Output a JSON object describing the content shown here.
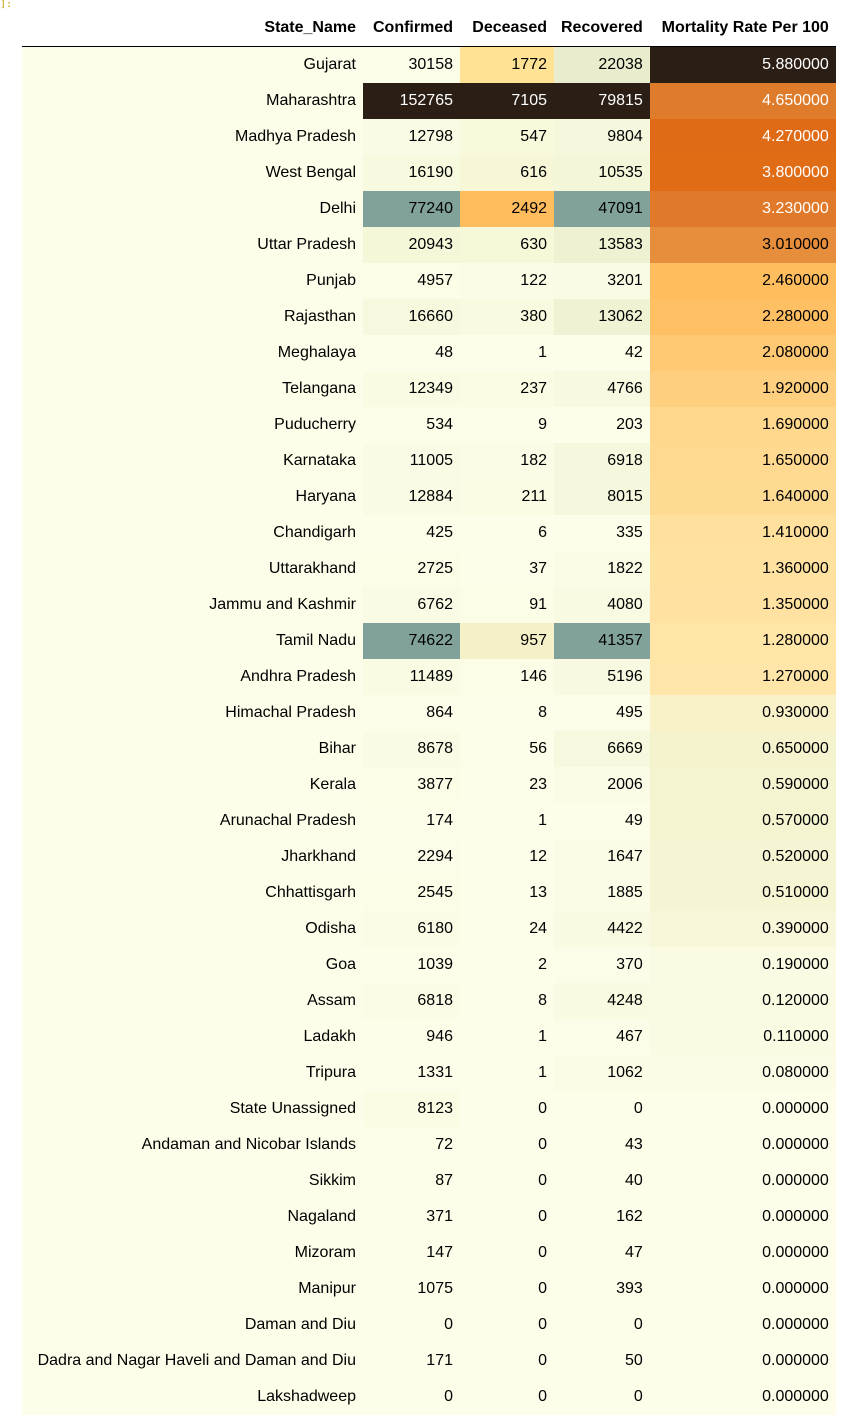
{
  "prompt_marker": "]:",
  "table": {
    "columns": [
      "State_Name",
      "Confirmed",
      "Deceased",
      "Recovered",
      "Mortality Rate Per 100"
    ],
    "rows": [
      [
        "Gujarat",
        "30158",
        "1772",
        "22038",
        "5.880000"
      ],
      [
        "Maharashtra",
        "152765",
        "7105",
        "79815",
        "4.650000"
      ],
      [
        "Madhya Pradesh",
        "12798",
        "547",
        "9804",
        "4.270000"
      ],
      [
        "West Bengal",
        "16190",
        "616",
        "10535",
        "3.800000"
      ],
      [
        "Delhi",
        "77240",
        "2492",
        "47091",
        "3.230000"
      ],
      [
        "Uttar Pradesh",
        "20943",
        "630",
        "13583",
        "3.010000"
      ],
      [
        "Punjab",
        "4957",
        "122",
        "3201",
        "2.460000"
      ],
      [
        "Rajasthan",
        "16660",
        "380",
        "13062",
        "2.280000"
      ],
      [
        "Meghalaya",
        "48",
        "1",
        "42",
        "2.080000"
      ],
      [
        "Telangana",
        "12349",
        "237",
        "4766",
        "1.920000"
      ],
      [
        "Puducherry",
        "534",
        "9",
        "203",
        "1.690000"
      ],
      [
        "Karnataka",
        "11005",
        "182",
        "6918",
        "1.650000"
      ],
      [
        "Haryana",
        "12884",
        "211",
        "8015",
        "1.640000"
      ],
      [
        "Chandigarh",
        "425",
        "6",
        "335",
        "1.410000"
      ],
      [
        "Uttarakhand",
        "2725",
        "37",
        "1822",
        "1.360000"
      ],
      [
        "Jammu and Kashmir",
        "6762",
        "91",
        "4080",
        "1.350000"
      ],
      [
        "Tamil Nadu",
        "74622",
        "957",
        "41357",
        "1.280000"
      ],
      [
        "Andhra Pradesh",
        "11489",
        "146",
        "5196",
        "1.270000"
      ],
      [
        "Himachal Pradesh",
        "864",
        "8",
        "495",
        "0.930000"
      ],
      [
        "Bihar",
        "8678",
        "56",
        "6669",
        "0.650000"
      ],
      [
        "Kerala",
        "3877",
        "23",
        "2006",
        "0.590000"
      ],
      [
        "Arunachal Pradesh",
        "174",
        "1",
        "49",
        "0.570000"
      ],
      [
        "Jharkhand",
        "2294",
        "12",
        "1647",
        "0.520000"
      ],
      [
        "Chhattisgarh",
        "2545",
        "13",
        "1885",
        "0.510000"
      ],
      [
        "Odisha",
        "6180",
        "24",
        "4422",
        "0.390000"
      ],
      [
        "Goa",
        "1039",
        "2",
        "370",
        "0.190000"
      ],
      [
        "Assam",
        "6818",
        "8",
        "4248",
        "0.120000"
      ],
      [
        "Ladakh",
        "946",
        "1",
        "467",
        "0.110000"
      ],
      [
        "Tripura",
        "1331",
        "1",
        "1062",
        "0.080000"
      ],
      [
        "State Unassigned",
        "8123",
        "0",
        "0",
        "0.000000"
      ],
      [
        "Andaman and Nicobar Islands",
        "72",
        "0",
        "43",
        "0.000000"
      ],
      [
        "Sikkim",
        "87",
        "0",
        "40",
        "0.000000"
      ],
      [
        "Nagaland",
        "371",
        "0",
        "162",
        "0.000000"
      ],
      [
        "Mizoram",
        "147",
        "0",
        "47",
        "0.000000"
      ],
      [
        "Manipur",
        "1075",
        "0",
        "393",
        "0.000000"
      ],
      [
        "Daman and Diu",
        "0",
        "0",
        "0",
        "0.000000"
      ],
      [
        "Dadra and Nagar Haveli and Daman and Diu",
        "171",
        "0",
        "50",
        "0.000000"
      ],
      [
        "Lakshadweep",
        "0",
        "0",
        "0",
        "0.000000"
      ]
    ],
    "colors": {
      "idx": "#fdfde9",
      "cell_light": "#fdfde9",
      "light_text": "#ffffff",
      "dark_text": "#000000",
      "confirmed": [
        "#fcfde9",
        "#2b1e14",
        "#f9fbe4",
        "#f8fae0",
        "#80a29a",
        "#f5f7d9",
        "#fcfde6",
        "#f7f9df",
        "#fdfdea",
        "#f9fbe3",
        "#fdfdea",
        "#f9fbe4",
        "#f9fbe4",
        "#fdfdea",
        "#fcfce7",
        "#fafbe4",
        "#80a29a",
        "#f9fbe3",
        "#fdfde9",
        "#fbfbe5",
        "#fcfce7",
        "#fdfdea",
        "#fcfde8",
        "#fcfce7",
        "#fbfce5",
        "#fdfde9",
        "#fafce5",
        "#fdfde9",
        "#fdfde9",
        "#fbfce4",
        "#fdfdea",
        "#fdfdea",
        "#fdfde9",
        "#fdfdea",
        "#fdfde9",
        "#fdfdea",
        "#fdfdea",
        "#fdfdea"
      ],
      "deceased": [
        "#ffe294",
        "#2b1e14",
        "#f9f9dc",
        "#f7f7d8",
        "#ffbd5e",
        "#f7f8d8",
        "#fbfce5",
        "#f9fae0",
        "#fdfde9",
        "#fbfce4",
        "#fdfde9",
        "#fbfce6",
        "#fbfce4",
        "#fdfde9",
        "#fdfde9",
        "#fcfde7",
        "#f4f1c8",
        "#fcfde7",
        "#fdfde9",
        "#fdfde9",
        "#fdfde9",
        "#fdfde9",
        "#fdfde9",
        "#fdfde9",
        "#fdfde9",
        "#fdfde9",
        "#fdfde9",
        "#fdfde9",
        "#fdfde9",
        "#fdfdea",
        "#fdfdea",
        "#fdfdea",
        "#fdfdea",
        "#fdfdea",
        "#fdfdea",
        "#fdfdea",
        "#fdfdea",
        "#fdfdea"
      ],
      "recovered": [
        "#e9edcd",
        "#2b1e14",
        "#f5f8dd",
        "#f3f6d9",
        "#80a29a",
        "#eef2d2",
        "#fafbe4",
        "#eff2d3",
        "#fdfdea",
        "#f8f9e0",
        "#fdfdea",
        "#f6f8de",
        "#f5f8dd",
        "#fdfdea",
        "#fbfce6",
        "#f9fae2",
        "#80a29a",
        "#f8f9e0",
        "#fcfde8",
        "#f7f9df",
        "#fbfce6",
        "#fdfdea",
        "#fbfce6",
        "#fbfce5",
        "#f9fae2",
        "#fcfde8",
        "#f9fae2",
        "#fcfde8",
        "#fbfce6",
        "#fdfdea",
        "#fdfdea",
        "#fdfdea",
        "#fdfde9",
        "#fdfdea",
        "#fcfde8",
        "#fdfdea",
        "#fdfdea",
        "#fdfdea"
      ],
      "mortality": [
        "#2b1e14",
        "#de7c2c",
        "#e06b16",
        "#e06d16",
        "#e1792a",
        "#e68e3c",
        "#ffbd5e",
        "#ffc063",
        "#ffc872",
        "#ffcf80",
        "#ffd88e",
        "#ffd990",
        "#ffda92",
        "#ffe09c",
        "#ffe2a0",
        "#ffe2a1",
        "#ffe5a6",
        "#ffe5a8",
        "#f9f2c8",
        "#f5f3cd",
        "#f5f4d0",
        "#f5f4d1",
        "#f6f5d3",
        "#f6f5d3",
        "#f8f7d9",
        "#fbfbe3",
        "#fbfbe4",
        "#fbfbe4",
        "#fcfce6",
        "#fdfde9",
        "#fdfde9",
        "#fdfde9",
        "#fdfde9",
        "#fdfde9",
        "#fdfde9",
        "#fdfde9",
        "#fdfde9",
        "#fdfde9"
      ],
      "mortality_light_text_rows": [
        0,
        1,
        2,
        3,
        4
      ]
    }
  }
}
